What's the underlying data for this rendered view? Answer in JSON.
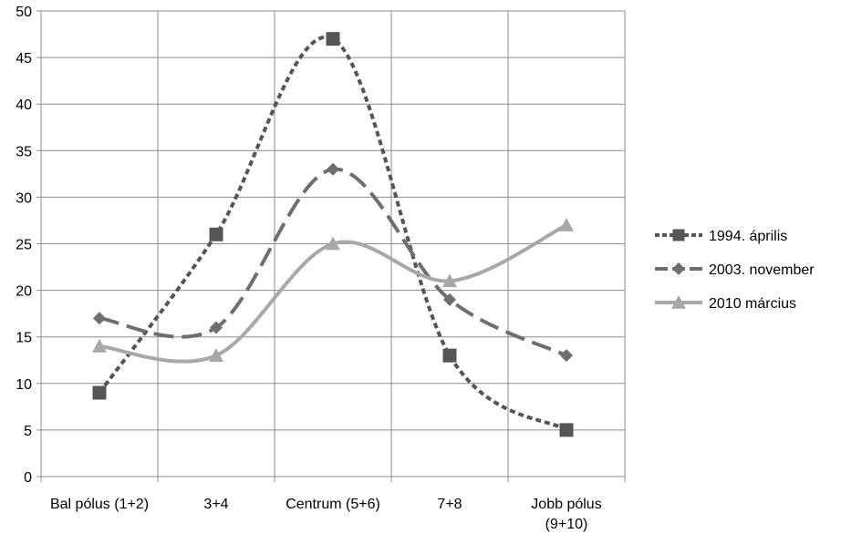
{
  "chart_data": {
    "type": "line",
    "title": "",
    "xlabel": "",
    "ylabel": "",
    "ylim": [
      0,
      50
    ],
    "yticks": [
      0,
      5,
      10,
      15,
      20,
      25,
      30,
      35,
      40,
      45,
      50
    ],
    "grid": true,
    "legend_position": "right",
    "categories": [
      [
        "Bal pólus (1+2)"
      ],
      [
        "3+4"
      ],
      [
        "Centrum (5+6)"
      ],
      [
        "7+8"
      ],
      [
        "Jobb pólus",
        "(9+10)"
      ]
    ],
    "series": [
      {
        "name": "1994. április",
        "values": [
          9,
          26,
          47,
          13,
          5
        ],
        "color": "#555555",
        "marker": "square",
        "line_style": "dotted"
      },
      {
        "name": "2003. november",
        "values": [
          17,
          16,
          33,
          19,
          13
        ],
        "color": "#6e6e6e",
        "marker": "diamond",
        "line_style": "dashed"
      },
      {
        "name": "2010 március",
        "values": [
          14,
          13,
          25,
          21,
          27
        ],
        "color": "#a8a8a8",
        "marker": "triangle",
        "line_style": "solid"
      }
    ]
  }
}
